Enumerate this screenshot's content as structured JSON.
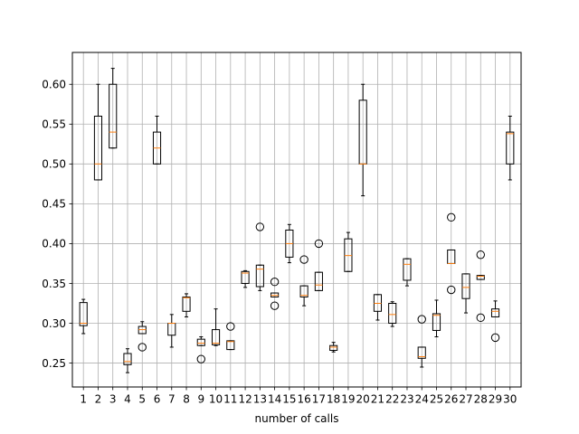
{
  "chart_data": {
    "type": "boxplot",
    "title": "",
    "xlabel": "number of calls",
    "ylabel": "",
    "ylim": [
      0.22,
      0.64
    ],
    "yticks": [
      0.25,
      0.3,
      0.35,
      0.4,
      0.45,
      0.5,
      0.55,
      0.6
    ],
    "ytick_labels": [
      "0.25",
      "0.30",
      "0.35",
      "0.40",
      "0.45",
      "0.50",
      "0.55",
      "0.60"
    ],
    "grid": true,
    "box_color": "#000000",
    "median_color": "#ff7f0e",
    "grid_color": "#b0b0b0",
    "categories": [
      "1",
      "2",
      "3",
      "4",
      "5",
      "6",
      "7",
      "8",
      "9",
      "10",
      "11",
      "12",
      "13",
      "14",
      "15",
      "16",
      "17",
      "18",
      "19",
      "20",
      "21",
      "22",
      "23",
      "24",
      "25",
      "26",
      "27",
      "28",
      "29",
      "30"
    ],
    "boxes": [
      {
        "wlo": 0.287,
        "q1": 0.297,
        "med": 0.3,
        "q3": 0.326,
        "whi": 0.33,
        "fliers": []
      },
      {
        "wlo": 0.48,
        "q1": 0.48,
        "med": 0.5,
        "q3": 0.56,
        "whi": 0.6,
        "fliers": []
      },
      {
        "wlo": 0.52,
        "q1": 0.52,
        "med": 0.54,
        "q3": 0.6,
        "whi": 0.62,
        "fliers": []
      },
      {
        "wlo": 0.238,
        "q1": 0.248,
        "med": 0.252,
        "q3": 0.262,
        "whi": 0.268,
        "fliers": []
      },
      {
        "wlo": 0.287,
        "q1": 0.287,
        "med": 0.292,
        "q3": 0.296,
        "whi": 0.302,
        "fliers": [
          0.27
        ]
      },
      {
        "wlo": 0.5,
        "q1": 0.5,
        "med": 0.52,
        "q3": 0.54,
        "whi": 0.56,
        "fliers": []
      },
      {
        "wlo": 0.27,
        "q1": 0.285,
        "med": 0.3,
        "q3": 0.3,
        "whi": 0.311,
        "fliers": []
      },
      {
        "wlo": 0.308,
        "q1": 0.315,
        "med": 0.332,
        "q3": 0.333,
        "whi": 0.337,
        "fliers": []
      },
      {
        "wlo": 0.272,
        "q1": 0.272,
        "med": 0.275,
        "q3": 0.28,
        "whi": 0.283,
        "fliers": [
          0.255
        ]
      },
      {
        "wlo": 0.272,
        "q1": 0.273,
        "med": 0.275,
        "q3": 0.292,
        "whi": 0.318,
        "fliers": []
      },
      {
        "wlo": 0.267,
        "q1": 0.267,
        "med": 0.277,
        "q3": 0.278,
        "whi": 0.278,
        "fliers": [
          0.296
        ]
      },
      {
        "wlo": 0.345,
        "q1": 0.35,
        "med": 0.363,
        "q3": 0.365,
        "whi": 0.366,
        "fliers": []
      },
      {
        "wlo": 0.341,
        "q1": 0.346,
        "med": 0.368,
        "q3": 0.373,
        "whi": 0.373,
        "fliers": [
          0.421
        ]
      },
      {
        "wlo": 0.333,
        "q1": 0.333,
        "med": 0.335,
        "q3": 0.338,
        "whi": 0.338,
        "fliers": [
          0.352,
          0.322
        ]
      },
      {
        "wlo": 0.376,
        "q1": 0.383,
        "med": 0.4,
        "q3": 0.417,
        "whi": 0.424,
        "fliers": []
      },
      {
        "wlo": 0.322,
        "q1": 0.333,
        "med": 0.335,
        "q3": 0.347,
        "whi": 0.347,
        "fliers": [
          0.38
        ]
      },
      {
        "wlo": 0.341,
        "q1": 0.341,
        "med": 0.348,
        "q3": 0.364,
        "whi": 0.364,
        "fliers": [
          0.4
        ]
      },
      {
        "wlo": 0.264,
        "q1": 0.266,
        "med": 0.27,
        "q3": 0.272,
        "whi": 0.276,
        "fliers": []
      },
      {
        "wlo": 0.365,
        "q1": 0.365,
        "med": 0.385,
        "q3": 0.406,
        "whi": 0.414,
        "fliers": []
      },
      {
        "wlo": 0.46,
        "q1": 0.5,
        "med": 0.5,
        "q3": 0.58,
        "whi": 0.6,
        "fliers": []
      },
      {
        "wlo": 0.304,
        "q1": 0.315,
        "med": 0.325,
        "q3": 0.336,
        "whi": 0.336,
        "fliers": []
      },
      {
        "wlo": 0.296,
        "q1": 0.3,
        "med": 0.311,
        "q3": 0.325,
        "whi": 0.327,
        "fliers": []
      },
      {
        "wlo": 0.347,
        "q1": 0.354,
        "med": 0.374,
        "q3": 0.381,
        "whi": 0.381,
        "fliers": []
      },
      {
        "wlo": 0.245,
        "q1": 0.256,
        "med": 0.258,
        "q3": 0.27,
        "whi": 0.27,
        "fliers": [
          0.305
        ]
      },
      {
        "wlo": 0.283,
        "q1": 0.291,
        "med": 0.31,
        "q3": 0.312,
        "whi": 0.329,
        "fliers": []
      },
      {
        "wlo": 0.375,
        "q1": 0.375,
        "med": 0.375,
        "q3": 0.392,
        "whi": 0.392,
        "fliers": [
          0.433,
          0.342
        ]
      },
      {
        "wlo": 0.313,
        "q1": 0.331,
        "med": 0.345,
        "q3": 0.362,
        "whi": 0.362,
        "fliers": []
      },
      {
        "wlo": 0.355,
        "q1": 0.355,
        "med": 0.359,
        "q3": 0.36,
        "whi": 0.36,
        "fliers": [
          0.386,
          0.307
        ]
      },
      {
        "wlo": 0.308,
        "q1": 0.308,
        "med": 0.315,
        "q3": 0.318,
        "whi": 0.328,
        "fliers": [
          0.282
        ]
      },
      {
        "wlo": 0.48,
        "q1": 0.5,
        "med": 0.538,
        "q3": 0.54,
        "whi": 0.56,
        "fliers": []
      }
    ]
  }
}
